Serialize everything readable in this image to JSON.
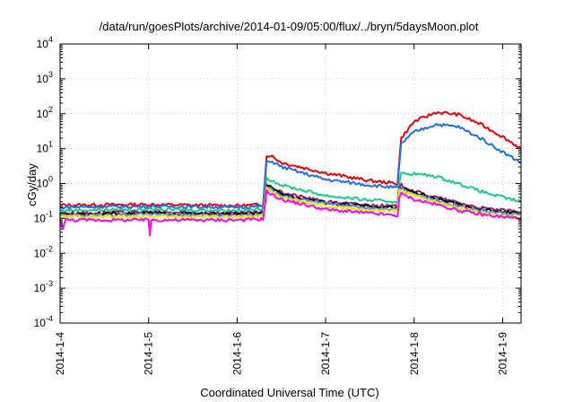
{
  "chart_data": {
    "type": "line",
    "title": "/data/run/goesPlots/archive/2014-01-09/05:00/flux/../bryn/5daysMoon.plot",
    "xlabel": "Coordinated Universal Time (UTC)",
    "ylabel": "cGy/day",
    "y_scale": "log",
    "ylim": [
      0.0001,
      10000
    ],
    "xlim": [
      "2014-01-04 00:00",
      "2014-01-09 05:00"
    ],
    "x_tick_labels": [
      "2014-1-4",
      "2014-1-5",
      "2014-1-6",
      "2014-1-7",
      "2014-1-8",
      "2014-1-9"
    ],
    "y_tick_labels": [
      {
        "base": "10",
        "exp": "-4"
      },
      {
        "base": "10",
        "exp": "-3"
      },
      {
        "base": "10",
        "exp": "-2"
      },
      {
        "base": "10",
        "exp": "-1"
      },
      {
        "base": "10",
        "exp": "0"
      },
      {
        "base": "10",
        "exp": "1"
      },
      {
        "base": "10",
        "exp": "2"
      },
      {
        "base": "10",
        "exp": "3"
      },
      {
        "base": "10",
        "exp": "4"
      }
    ],
    "grid": true,
    "legend": "none",
    "series": [
      {
        "color": "#e8000b",
        "x": [
          "2014-01-04 00:00",
          "2014-01-05 00:00",
          "2014-01-06 00:00",
          "2014-01-06 07:00",
          "2014-01-06 08:00",
          "2014-01-06 09:00",
          "2014-01-06 12:00",
          "2014-01-07 00:00",
          "2014-01-07 12:00",
          "2014-01-07 19:30",
          "2014-01-07 20:00",
          "2014-01-07 20:30",
          "2014-01-08 00:00",
          "2014-01-08 06:00",
          "2014-01-08 12:00",
          "2014-01-08 18:00",
          "2014-01-09 00:00",
          "2014-01-09 05:00"
        ],
        "y": [
          0.24,
          0.25,
          0.23,
          0.25,
          6.0,
          6.5,
          4.0,
          2.0,
          1.2,
          1.0,
          5.0,
          20.0,
          60.0,
          110.0,
          95.0,
          50.0,
          22.0,
          10.0
        ]
      },
      {
        "color": "#1f6fe5",
        "x": [
          "2014-01-04 00:00",
          "2014-01-05 00:00",
          "2014-01-06 00:00",
          "2014-01-06 07:00",
          "2014-01-06 08:00",
          "2014-01-06 09:00",
          "2014-01-06 12:00",
          "2014-01-07 00:00",
          "2014-01-07 12:00",
          "2014-01-07 19:30",
          "2014-01-07 20:00",
          "2014-01-07 20:30",
          "2014-01-08 00:00",
          "2014-01-08 06:00",
          "2014-01-08 12:00",
          "2014-01-08 18:00",
          "2014-01-09 00:00",
          "2014-01-09 05:00"
        ],
        "y": [
          0.21,
          0.22,
          0.21,
          0.22,
          4.0,
          4.5,
          3.0,
          1.3,
          0.9,
          0.75,
          3.5,
          14.0,
          30.0,
          50.0,
          42.0,
          20.0,
          8.0,
          4.0
        ]
      },
      {
        "color": "#1ec88f",
        "x": [
          "2014-01-04 00:00",
          "2014-01-05 00:00",
          "2014-01-06 00:00",
          "2014-01-06 07:00",
          "2014-01-06 08:00",
          "2014-01-06 09:00",
          "2014-01-06 12:00",
          "2014-01-07 00:00",
          "2014-01-07 12:00",
          "2014-01-07 19:30",
          "2014-01-07 20:00",
          "2014-01-07 20:30",
          "2014-01-08 00:00",
          "2014-01-08 06:00",
          "2014-01-08 12:00",
          "2014-01-08 18:00",
          "2014-01-09 00:00",
          "2014-01-09 05:00"
        ],
        "y": [
          0.17,
          0.18,
          0.17,
          0.18,
          1.5,
          1.3,
          0.9,
          0.45,
          0.33,
          0.3,
          1.2,
          1.9,
          1.9,
          1.6,
          1.0,
          0.6,
          0.4,
          0.3
        ]
      },
      {
        "color": "#9b1c6e",
        "x": [
          "2014-01-04 00:00",
          "2014-01-05 00:00",
          "2014-01-06 00:00",
          "2014-01-06 07:00",
          "2014-01-06 08:00",
          "2014-01-06 09:00",
          "2014-01-06 12:00",
          "2014-01-07 00:00",
          "2014-01-07 12:00",
          "2014-01-07 19:30",
          "2014-01-07 20:00",
          "2014-01-07 20:30",
          "2014-01-08 00:00",
          "2014-01-08 06:00",
          "2014-01-08 12:00",
          "2014-01-08 18:00",
          "2014-01-09 00:00",
          "2014-01-09 05:00"
        ],
        "y": [
          0.14,
          0.15,
          0.14,
          0.15,
          0.9,
          0.8,
          0.55,
          0.3,
          0.24,
          0.22,
          0.8,
          0.9,
          0.6,
          0.4,
          0.28,
          0.2,
          0.17,
          0.15
        ]
      },
      {
        "color": "#000000",
        "x": [
          "2014-01-04 00:00",
          "2014-01-05 00:00",
          "2014-01-06 00:00",
          "2014-01-06 07:00",
          "2014-01-06 08:00",
          "2014-01-06 09:00",
          "2014-01-06 12:00",
          "2014-01-07 00:00",
          "2014-01-07 12:00",
          "2014-01-07 19:30",
          "2014-01-07 20:00",
          "2014-01-07 20:30",
          "2014-01-08 00:00",
          "2014-01-08 06:00",
          "2014-01-08 12:00",
          "2014-01-08 18:00",
          "2014-01-09 00:00",
          "2014-01-09 05:00"
        ],
        "y": [
          0.13,
          0.14,
          0.13,
          0.14,
          0.85,
          0.75,
          0.5,
          0.28,
          0.22,
          0.2,
          0.75,
          0.8,
          0.55,
          0.36,
          0.25,
          0.18,
          0.15,
          0.14
        ]
      },
      {
        "color": "#5a8fd8",
        "x": [
          "2014-01-04 00:00",
          "2014-01-05 00:00",
          "2014-01-06 00:00",
          "2014-01-06 07:00",
          "2014-01-06 08:00",
          "2014-01-06 09:00",
          "2014-01-06 12:00",
          "2014-01-07 00:00",
          "2014-01-07 12:00",
          "2014-01-07 19:30",
          "2014-01-07 20:00",
          "2014-01-07 20:30",
          "2014-01-08 00:00",
          "2014-01-08 06:00",
          "2014-01-08 12:00",
          "2014-01-08 18:00",
          "2014-01-09 00:00",
          "2014-01-09 05:00"
        ],
        "y": [
          0.12,
          0.13,
          0.12,
          0.13,
          0.8,
          0.7,
          0.45,
          0.26,
          0.2,
          0.19,
          0.7,
          0.75,
          0.5,
          0.33,
          0.23,
          0.17,
          0.14,
          0.13
        ]
      },
      {
        "color": "#f2e600",
        "x": [
          "2014-01-04 00:00",
          "2014-01-05 00:00",
          "2014-01-06 00:00",
          "2014-01-06 07:00",
          "2014-01-06 08:00",
          "2014-01-06 09:00",
          "2014-01-06 12:00",
          "2014-01-07 00:00",
          "2014-01-07 12:00",
          "2014-01-07 19:30",
          "2014-01-07 20:00",
          "2014-01-07 20:30",
          "2014-01-08 00:00",
          "2014-01-08 06:00",
          "2014-01-08 12:00",
          "2014-01-08 18:00",
          "2014-01-09 00:00",
          "2014-01-09 05:00"
        ],
        "y": [
          0.11,
          0.115,
          0.11,
          0.115,
          0.7,
          0.6,
          0.4,
          0.22,
          0.17,
          0.16,
          0.6,
          0.65,
          0.45,
          0.3,
          0.2,
          0.15,
          0.12,
          0.11
        ]
      },
      {
        "color": "#ff00ff",
        "x": [
          "2014-01-04 00:00",
          "2014-01-04 00:45",
          "2014-01-04 01:30",
          "2014-01-05 00:00",
          "2014-01-05 00:20",
          "2014-01-05 00:40",
          "2014-01-06 00:00",
          "2014-01-06 07:00",
          "2014-01-06 08:00",
          "2014-01-06 09:00",
          "2014-01-06 12:00",
          "2014-01-07 00:00",
          "2014-01-07 12:00",
          "2014-01-07 19:30",
          "2014-01-07 20:00",
          "2014-01-07 20:30",
          "2014-01-08 00:00",
          "2014-01-08 06:00",
          "2014-01-08 12:00",
          "2014-01-08 18:00",
          "2014-01-09 00:00",
          "2014-01-09 05:00"
        ],
        "y": [
          0.09,
          0.055,
          0.09,
          0.09,
          0.035,
          0.09,
          0.09,
          0.095,
          0.6,
          0.5,
          0.35,
          0.18,
          0.14,
          0.12,
          0.4,
          0.5,
          0.35,
          0.25,
          0.17,
          0.13,
          0.11,
          0.1
        ]
      }
    ]
  }
}
